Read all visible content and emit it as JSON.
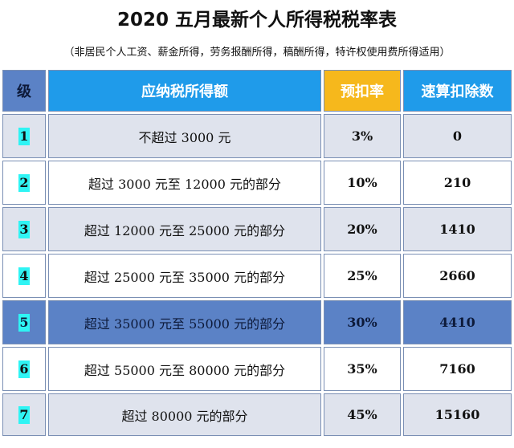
{
  "title": "2020 五月最新个人所得税税率表",
  "subtitle": "（非居民个人工资、薪金所得，劳务报酬所得，稿酬所得，特许权使用费所得适用）",
  "headers": {
    "level": "级",
    "range": "应纳税所得额",
    "rate": "预扣率",
    "deduction": "速算扣除数"
  },
  "rows": [
    {
      "level": "1",
      "range": "不超过 3000 元",
      "rate": "3%",
      "deduction": "0"
    },
    {
      "level": "2",
      "range": "超过 3000 元至 12000 元的部分",
      "rate": "10%",
      "deduction": "210"
    },
    {
      "level": "3",
      "range": "超过 12000 元至 25000 元的部分",
      "rate": "20%",
      "deduction": "1410"
    },
    {
      "level": "4",
      "range": "超过 25000 元至 35000 元的部分",
      "rate": "25%",
      "deduction": "2660"
    },
    {
      "level": "5",
      "range": "超过 35000 元至 55000 元的部分",
      "rate": "30%",
      "deduction": "4410"
    },
    {
      "level": "6",
      "range": "超过 55000 元至 80000 元的部分",
      "rate": "35%",
      "deduction": "7160"
    },
    {
      "level": "7",
      "range": "超过 80000 元的部分",
      "rate": "45%",
      "deduction": "15160"
    }
  ],
  "colors": {
    "header_blue": "#1f9bea",
    "header_orange": "#f6b81c",
    "level_header": "#5b82c6",
    "row_alt": "#dfe3ed",
    "row_highlight": "#5b82c6",
    "level_mark": "#2ff4f4"
  }
}
